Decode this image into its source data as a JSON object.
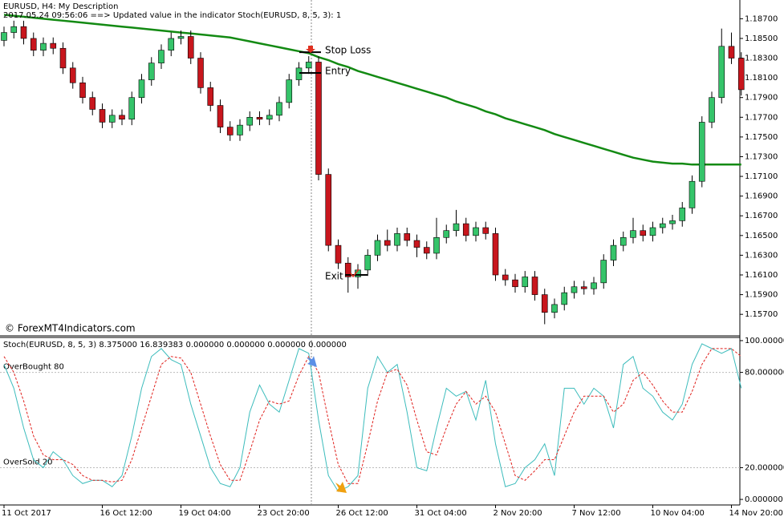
{
  "chart_data": [
    {
      "type": "candlestick",
      "title": "EURUSD, H4:  My Description",
      "subtitle": "2017.05.24 09:56:06 ==>  Updated value in the indicator Stoch(EURUSD, 8, 5, 3): 1",
      "watermark": "© ForexMT4Indicators.com",
      "up_color": "#35c46a",
      "down_color": "#c8161d",
      "open": [
        1.1848,
        1.1856,
        1.1862,
        1.185,
        1.1838,
        1.1845,
        1.184,
        1.182,
        1.1805,
        1.179,
        1.1778,
        1.1765,
        1.1772,
        1.1768,
        1.179,
        1.1808,
        1.1825,
        1.1838,
        1.185,
        1.1852,
        1.183,
        1.18,
        1.1782,
        1.176,
        1.1752,
        1.1762,
        1.177,
        1.1768,
        1.1772,
        1.1785,
        1.1808,
        1.182,
        1.1826,
        1.1712,
        1.164,
        1.1622,
        1.1608,
        1.1615,
        1.163,
        1.1645,
        1.164,
        1.1652,
        1.1645,
        1.1638,
        1.1632,
        1.1648,
        1.1655,
        1.1662,
        1.165,
        1.1658,
        1.1652,
        1.161,
        1.1605,
        1.1598,
        1.1608,
        1.159,
        1.1572,
        1.158,
        1.1592,
        1.1598,
        1.1596,
        1.1602,
        1.1625,
        1.164,
        1.1648,
        1.1655,
        1.165,
        1.1658,
        1.1662,
        1.1665,
        1.1678,
        1.1705,
        1.1765,
        1.179,
        1.1842,
        1.183
      ],
      "high": [
        1.1862,
        1.1868,
        1.1868,
        1.1856,
        1.1851,
        1.1851,
        1.1846,
        1.1826,
        1.1811,
        1.1796,
        1.1784,
        1.1778,
        1.1778,
        1.1796,
        1.1814,
        1.1831,
        1.1844,
        1.1856,
        1.1858,
        1.1858,
        1.1836,
        1.1806,
        1.1788,
        1.1766,
        1.1768,
        1.1776,
        1.1776,
        1.1778,
        1.1791,
        1.1814,
        1.1826,
        1.1832,
        1.1832,
        1.1718,
        1.1646,
        1.1628,
        1.1621,
        1.1636,
        1.1651,
        1.1656,
        1.1658,
        1.1658,
        1.1651,
        1.1644,
        1.1668,
        1.1661,
        1.1676,
        1.1668,
        1.1664,
        1.1664,
        1.1658,
        1.1616,
        1.1611,
        1.1614,
        1.1614,
        1.1596,
        1.1586,
        1.1598,
        1.1604,
        1.1604,
        1.1608,
        1.1631,
        1.1646,
        1.1654,
        1.1668,
        1.1661,
        1.1664,
        1.1668,
        1.1671,
        1.1684,
        1.1711,
        1.1771,
        1.1796,
        1.186,
        1.1856,
        1.1836
      ],
      "low": [
        1.1842,
        1.185,
        1.1844,
        1.1832,
        1.1832,
        1.1834,
        1.1814,
        1.1799,
        1.1784,
        1.1772,
        1.1759,
        1.1759,
        1.1762,
        1.1762,
        1.1784,
        1.1802,
        1.1819,
        1.1832,
        1.1844,
        1.1824,
        1.1794,
        1.1776,
        1.1754,
        1.1746,
        1.1746,
        1.1756,
        1.1762,
        1.1762,
        1.1766,
        1.1779,
        1.1802,
        1.1814,
        1.1706,
        1.1634,
        1.1616,
        1.1592,
        1.1596,
        1.1609,
        1.1624,
        1.1634,
        1.1634,
        1.1639,
        1.1628,
        1.1626,
        1.1626,
        1.1642,
        1.1649,
        1.1644,
        1.1644,
        1.1646,
        1.1604,
        1.1599,
        1.1592,
        1.1592,
        1.1584,
        1.156,
        1.1566,
        1.1574,
        1.1586,
        1.159,
        1.159,
        1.1596,
        1.1619,
        1.1634,
        1.1642,
        1.1644,
        1.1644,
        1.1652,
        1.1656,
        1.1659,
        1.1672,
        1.1699,
        1.1759,
        1.1784,
        1.1824,
        1.1792
      ],
      "close": [
        1.1856,
        1.1862,
        1.185,
        1.1838,
        1.1845,
        1.184,
        1.182,
        1.1805,
        1.179,
        1.1778,
        1.1765,
        1.1772,
        1.1768,
        1.179,
        1.1808,
        1.1825,
        1.1838,
        1.185,
        1.1852,
        1.183,
        1.18,
        1.1782,
        1.176,
        1.1752,
        1.1762,
        1.177,
        1.1768,
        1.1772,
        1.1785,
        1.1808,
        1.182,
        1.1826,
        1.1712,
        1.164,
        1.1622,
        1.1608,
        1.1615,
        1.163,
        1.1645,
        1.164,
        1.1652,
        1.1645,
        1.1638,
        1.1632,
        1.1648,
        1.1655,
        1.1662,
        1.165,
        1.1658,
        1.1652,
        1.161,
        1.1605,
        1.1598,
        1.1608,
        1.159,
        1.1572,
        1.158,
        1.1592,
        1.1598,
        1.1596,
        1.1602,
        1.1625,
        1.164,
        1.1648,
        1.1655,
        1.165,
        1.1658,
        1.1662,
        1.1665,
        1.1678,
        1.1705,
        1.1765,
        1.179,
        1.1842,
        1.183,
        1.1798
      ],
      "series": [
        {
          "color": "#138a13",
          "values": [
            1.1874,
            1.1873,
            1.1872,
            1.1871,
            1.187,
            1.1869,
            1.1868,
            1.1867,
            1.1866,
            1.1865,
            1.1864,
            1.1863,
            1.1862,
            1.1861,
            1.186,
            1.1859,
            1.1858,
            1.1857,
            1.1856,
            1.1855,
            1.1854,
            1.1853,
            1.1852,
            1.1851,
            1.1849,
            1.1847,
            1.1845,
            1.1843,
            1.1841,
            1.1839,
            1.1837,
            1.1835,
            1.1831,
            1.1828,
            1.1824,
            1.1821,
            1.1817,
            1.1814,
            1.1811,
            1.1808,
            1.1805,
            1.1802,
            1.1799,
            1.1796,
            1.1793,
            1.179,
            1.1786,
            1.1783,
            1.178,
            1.1776,
            1.1773,
            1.1769,
            1.1766,
            1.1763,
            1.176,
            1.1757,
            1.1753,
            1.175,
            1.1747,
            1.1744,
            1.1741,
            1.1738,
            1.1735,
            1.1732,
            1.1729,
            1.1727,
            1.1725,
            1.1724,
            1.1723,
            1.1723,
            1.1722,
            1.1722,
            1.1722,
            1.1722,
            1.1722,
            1.1722
          ]
        }
      ],
      "annotations": [
        {
          "label": "Stop Loss",
          "value": 1.1836
        },
        {
          "label": "Entry",
          "value": 1.1815
        },
        {
          "label": "Exit",
          "value": 1.161
        }
      ],
      "ylim": [
        1.1549,
        1.1889
      ],
      "yticks": [
        {
          "value": 1.187,
          "label": "1.18700"
        },
        {
          "value": 1.185,
          "label": "1.18500"
        },
        {
          "value": 1.183,
          "label": "1.18300"
        },
        {
          "value": 1.181,
          "label": "1.18100"
        },
        {
          "value": 1.179,
          "label": "1.17900"
        },
        {
          "value": 1.177,
          "label": "1.17700"
        },
        {
          "value": 1.175,
          "label": "1.17500"
        },
        {
          "value": 1.173,
          "label": "1.17300"
        },
        {
          "value": 1.171,
          "label": "1.17100"
        },
        {
          "value": 1.169,
          "label": "1.16900"
        },
        {
          "value": 1.167,
          "label": "1.16700"
        },
        {
          "value": 1.165,
          "label": "1.16500"
        },
        {
          "value": 1.163,
          "label": "1.16300"
        },
        {
          "value": 1.161,
          "label": "1.16100"
        },
        {
          "value": 1.159,
          "label": "1.15900"
        },
        {
          "value": 1.157,
          "label": "1.15700"
        }
      ]
    },
    {
      "type": "line",
      "title": "Stoch(EURUSD, 8, 5, 3) 8.375000 16.839383 0.000000 0.000000 0.000000 0.000000",
      "categories": [
        "11 Oct 2017",
        null,
        null,
        null,
        null,
        null,
        null,
        null,
        null,
        null,
        "16 Oct 12:00",
        null,
        null,
        null,
        null,
        null,
        null,
        null,
        "19 Oct 04:00",
        null,
        null,
        null,
        null,
        null,
        null,
        null,
        "23 Oct 20:00",
        null,
        null,
        null,
        null,
        null,
        null,
        null,
        "26 Oct 12:00",
        null,
        null,
        null,
        null,
        null,
        null,
        null,
        "31 Oct 04:00",
        null,
        null,
        null,
        null,
        null,
        null,
        null,
        "2 Nov 20:00",
        null,
        null,
        null,
        null,
        null,
        null,
        null,
        "7 Nov 12:00",
        null,
        null,
        null,
        null,
        null,
        null,
        null,
        "10 Nov 04:00",
        null,
        null,
        null,
        null,
        null,
        null,
        null,
        "14 Nov 20:00",
        null
      ],
      "series": [
        {
          "color": "#3cbcbc",
          "values": [
            85,
            70,
            45,
            25,
            20,
            30,
            25,
            15,
            10,
            12,
            12,
            8,
            15,
            40,
            70,
            90,
            95,
            88,
            85,
            60,
            40,
            20,
            10,
            8,
            20,
            55,
            72,
            60,
            55,
            75,
            95,
            92,
            50,
            15,
            5,
            8,
            15,
            70,
            90,
            80,
            85,
            55,
            20,
            18,
            45,
            70,
            65,
            68,
            50,
            75,
            35,
            8,
            10,
            20,
            25,
            35,
            15,
            70,
            70,
            60,
            70,
            65,
            45,
            85,
            90,
            70,
            65,
            55,
            50,
            60,
            85,
            98,
            95,
            92,
            95,
            70
          ]
        },
        {
          "color": "#e0201c",
          "dashed": true,
          "values": [
            90,
            80,
            62,
            40,
            28,
            25,
            25,
            22,
            15,
            12,
            12,
            11,
            12,
            25,
            45,
            65,
            85,
            90,
            89,
            80,
            60,
            40,
            22,
            12,
            12,
            30,
            50,
            62,
            60,
            62,
            78,
            90,
            80,
            50,
            22,
            10,
            10,
            35,
            62,
            80,
            82,
            72,
            50,
            30,
            28,
            45,
            60,
            68,
            60,
            65,
            55,
            35,
            15,
            12,
            18,
            25,
            25,
            40,
            55,
            65,
            65,
            65,
            55,
            60,
            75,
            80,
            72,
            62,
            55,
            55,
            68,
            85,
            95,
            95,
            95,
            90
          ]
        }
      ],
      "levels": [
        {
          "value": 80,
          "label": "OverBought 80"
        },
        {
          "value": 20,
          "label": "OverSold 20"
        }
      ],
      "ylim": [
        -3.5,
        102
      ],
      "yticks": [
        {
          "value": 100,
          "label": "100.000000"
        },
        {
          "value": 80,
          "label": "80.000000"
        },
        {
          "value": 20,
          "label": "20.000000"
        },
        {
          "value": 0,
          "label": "0.000000"
        }
      ]
    }
  ]
}
